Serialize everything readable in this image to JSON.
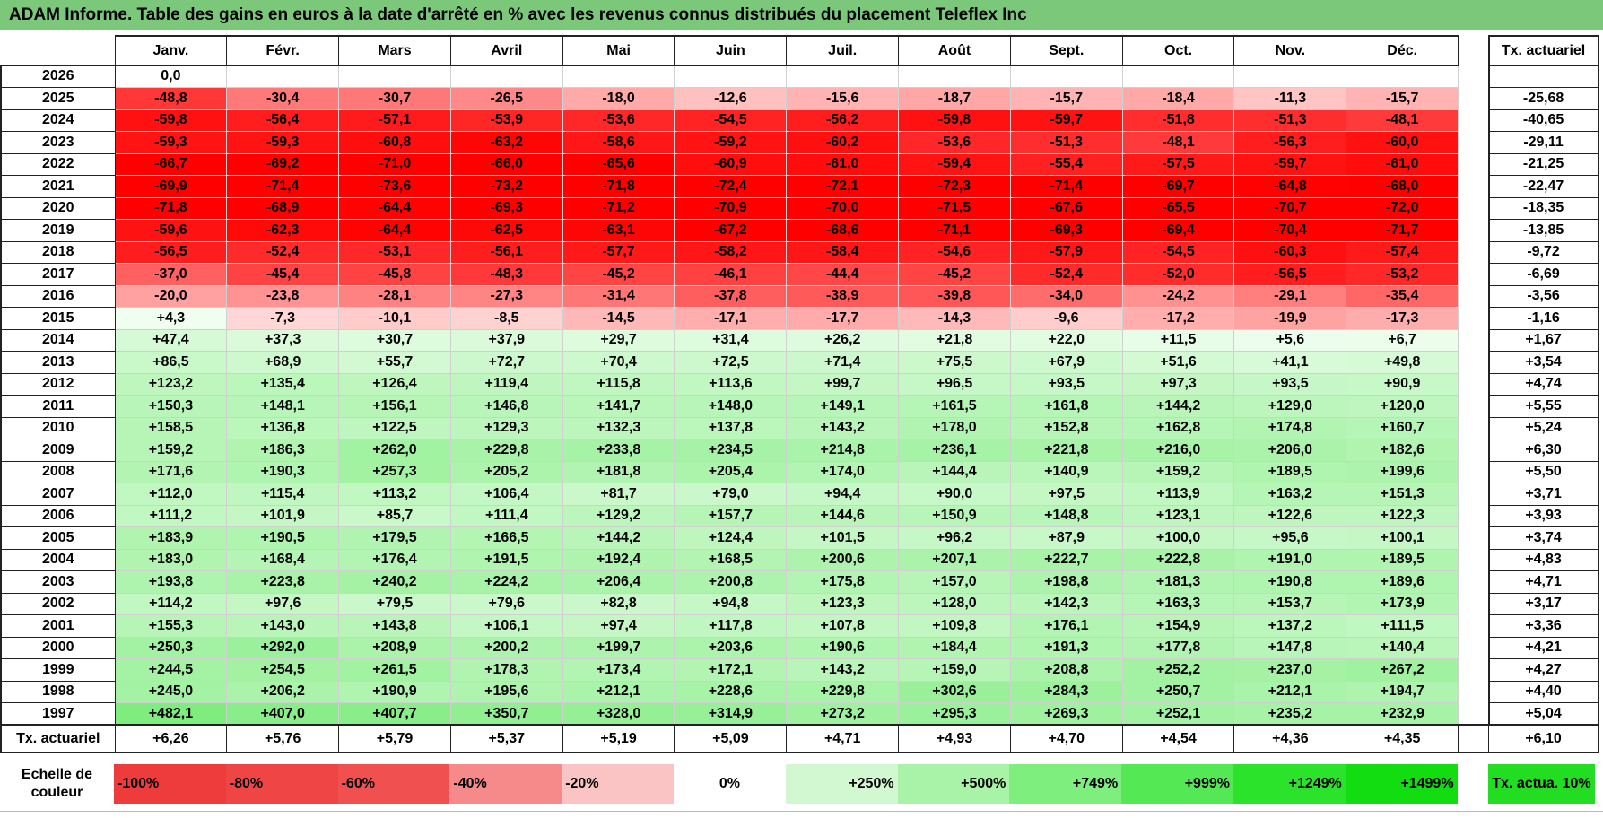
{
  "title": "ADAM Informe. Table des gains en euros à la date d'arrêté en % avec les revenus connus distribués du placement Teleflex Inc",
  "months": [
    "Janv.",
    "Févr.",
    "Mars",
    "Avril",
    "Mai",
    "Juin",
    "Juil.",
    "Août",
    "Sept.",
    "Oct.",
    "Nov.",
    "Déc."
  ],
  "annual_header": "Tx. actuariel",
  "rows": [
    {
      "year": "2026",
      "values": [
        "0,0"
      ],
      "annual": ""
    },
    {
      "year": "2025",
      "values": [
        "-48,8",
        "-30,4",
        "-30,7",
        "-26,5",
        "-18,0",
        "-12,6",
        "-15,6",
        "-18,7",
        "-15,7",
        "-18,4",
        "-11,3",
        "-15,7"
      ],
      "annual": "-25,68"
    },
    {
      "year": "2024",
      "values": [
        "-59,8",
        "-56,4",
        "-57,1",
        "-53,9",
        "-53,6",
        "-54,5",
        "-56,2",
        "-59,8",
        "-59,7",
        "-51,8",
        "-51,3",
        "-48,1"
      ],
      "annual": "-40,65"
    },
    {
      "year": "2023",
      "values": [
        "-59,3",
        "-59,3",
        "-60,8",
        "-63,2",
        "-58,6",
        "-59,2",
        "-60,2",
        "-53,6",
        "-51,3",
        "-48,1",
        "-56,3",
        "-60,0"
      ],
      "annual": "-29,11"
    },
    {
      "year": "2022",
      "values": [
        "-66,7",
        "-69,2",
        "-71,0",
        "-66,0",
        "-65,6",
        "-60,9",
        "-61,0",
        "-59,4",
        "-55,4",
        "-57,5",
        "-59,7",
        "-61,0"
      ],
      "annual": "-21,25"
    },
    {
      "year": "2021",
      "values": [
        "-69,9",
        "-71,4",
        "-73,6",
        "-73,2",
        "-71,8",
        "-72,4",
        "-72,1",
        "-72,3",
        "-71,4",
        "-69,7",
        "-64,8",
        "-68,0"
      ],
      "annual": "-22,47"
    },
    {
      "year": "2020",
      "values": [
        "-71,8",
        "-68,9",
        "-64,4",
        "-69,3",
        "-71,2",
        "-70,9",
        "-70,0",
        "-71,5",
        "-67,6",
        "-65,5",
        "-70,7",
        "-72,0"
      ],
      "annual": "-18,35"
    },
    {
      "year": "2019",
      "values": [
        "-59,6",
        "-62,3",
        "-64,4",
        "-62,5",
        "-63,1",
        "-67,2",
        "-68,6",
        "-71,1",
        "-69,3",
        "-69,4",
        "-70,4",
        "-71,7"
      ],
      "annual": "-13,85"
    },
    {
      "year": "2018",
      "values": [
        "-56,5",
        "-52,4",
        "-53,1",
        "-56,1",
        "-57,7",
        "-58,2",
        "-58,4",
        "-54,6",
        "-57,9",
        "-54,5",
        "-60,3",
        "-57,4"
      ],
      "annual": "-9,72"
    },
    {
      "year": "2017",
      "values": [
        "-37,0",
        "-45,4",
        "-45,8",
        "-48,3",
        "-45,2",
        "-46,1",
        "-44,4",
        "-45,2",
        "-52,4",
        "-52,0",
        "-56,5",
        "-53,2"
      ],
      "annual": "-6,69"
    },
    {
      "year": "2016",
      "values": [
        "-20,0",
        "-23,8",
        "-28,1",
        "-27,3",
        "-31,4",
        "-37,8",
        "-38,9",
        "-39,8",
        "-34,0",
        "-24,2",
        "-29,1",
        "-35,4"
      ],
      "annual": "-3,56"
    },
    {
      "year": "2015",
      "values": [
        "+4,3",
        "-7,3",
        "-10,1",
        "-8,5",
        "-14,5",
        "-17,1",
        "-17,7",
        "-14,3",
        "-9,6",
        "-17,2",
        "-19,9",
        "-17,3"
      ],
      "annual": "-1,16"
    },
    {
      "year": "2014",
      "values": [
        "+47,4",
        "+37,3",
        "+30,7",
        "+37,9",
        "+29,7",
        "+31,4",
        "+26,2",
        "+21,8",
        "+22,0",
        "+11,5",
        "+5,6",
        "+6,7"
      ],
      "annual": "+1,67"
    },
    {
      "year": "2013",
      "values": [
        "+86,5",
        "+68,9",
        "+55,7",
        "+72,7",
        "+70,4",
        "+72,5",
        "+71,4",
        "+75,5",
        "+67,9",
        "+51,6",
        "+41,1",
        "+49,8"
      ],
      "annual": "+3,54"
    },
    {
      "year": "2012",
      "values": [
        "+123,2",
        "+135,4",
        "+126,4",
        "+119,4",
        "+115,8",
        "+113,6",
        "+99,7",
        "+96,5",
        "+93,5",
        "+97,3",
        "+93,5",
        "+90,9"
      ],
      "annual": "+4,74"
    },
    {
      "year": "2011",
      "values": [
        "+150,3",
        "+148,1",
        "+156,1",
        "+146,8",
        "+141,7",
        "+148,0",
        "+149,1",
        "+161,5",
        "+161,8",
        "+144,2",
        "+129,0",
        "+120,0"
      ],
      "annual": "+5,55"
    },
    {
      "year": "2010",
      "values": [
        "+158,5",
        "+136,8",
        "+122,5",
        "+129,3",
        "+132,3",
        "+137,8",
        "+143,2",
        "+178,0",
        "+152,8",
        "+162,8",
        "+174,8",
        "+160,7"
      ],
      "annual": "+5,24"
    },
    {
      "year": "2009",
      "values": [
        "+159,2",
        "+186,3",
        "+262,0",
        "+229,8",
        "+233,8",
        "+234,5",
        "+214,8",
        "+236,1",
        "+221,8",
        "+216,0",
        "+206,0",
        "+182,6"
      ],
      "annual": "+6,30"
    },
    {
      "year": "2008",
      "values": [
        "+171,6",
        "+190,3",
        "+257,3",
        "+205,2",
        "+181,8",
        "+205,4",
        "+174,0",
        "+144,4",
        "+140,9",
        "+159,2",
        "+189,5",
        "+199,6"
      ],
      "annual": "+5,50"
    },
    {
      "year": "2007",
      "values": [
        "+112,0",
        "+115,4",
        "+113,2",
        "+106,4",
        "+81,7",
        "+79,0",
        "+94,4",
        "+90,0",
        "+97,5",
        "+113,9",
        "+163,2",
        "+151,3"
      ],
      "annual": "+3,71"
    },
    {
      "year": "2006",
      "values": [
        "+111,2",
        "+101,9",
        "+85,7",
        "+111,4",
        "+129,2",
        "+157,7",
        "+144,6",
        "+150,9",
        "+148,8",
        "+123,1",
        "+122,6",
        "+122,3"
      ],
      "annual": "+3,93"
    },
    {
      "year": "2005",
      "values": [
        "+183,9",
        "+190,5",
        "+179,5",
        "+166,5",
        "+144,2",
        "+124,4",
        "+101,5",
        "+96,2",
        "+87,9",
        "+100,0",
        "+95,6",
        "+100,1"
      ],
      "annual": "+3,74"
    },
    {
      "year": "2004",
      "values": [
        "+183,0",
        "+168,4",
        "+176,4",
        "+191,5",
        "+192,4",
        "+168,5",
        "+200,6",
        "+207,1",
        "+222,7",
        "+222,8",
        "+191,0",
        "+189,5"
      ],
      "annual": "+4,83"
    },
    {
      "year": "2003",
      "values": [
        "+193,8",
        "+223,8",
        "+240,2",
        "+224,2",
        "+206,4",
        "+200,8",
        "+175,8",
        "+157,0",
        "+198,8",
        "+181,3",
        "+190,8",
        "+189,6"
      ],
      "annual": "+4,71"
    },
    {
      "year": "2002",
      "values": [
        "+114,2",
        "+97,6",
        "+79,5",
        "+79,6",
        "+82,8",
        "+94,8",
        "+123,3",
        "+128,0",
        "+142,3",
        "+163,3",
        "+153,7",
        "+173,9"
      ],
      "annual": "+3,17"
    },
    {
      "year": "2001",
      "values": [
        "+155,3",
        "+143,0",
        "+143,8",
        "+106,1",
        "+97,4",
        "+117,8",
        "+107,8",
        "+109,8",
        "+176,1",
        "+154,9",
        "+137,2",
        "+111,5"
      ],
      "annual": "+3,36"
    },
    {
      "year": "2000",
      "values": [
        "+250,3",
        "+292,0",
        "+208,9",
        "+200,2",
        "+199,7",
        "+203,6",
        "+190,6",
        "+184,4",
        "+191,3",
        "+177,8",
        "+147,8",
        "+140,4"
      ],
      "annual": "+4,21"
    },
    {
      "year": "1999",
      "values": [
        "+244,5",
        "+254,5",
        "+261,5",
        "+178,3",
        "+173,4",
        "+172,1",
        "+143,2",
        "+159,0",
        "+208,8",
        "+252,2",
        "+237,0",
        "+267,2"
      ],
      "annual": "+4,27"
    },
    {
      "year": "1998",
      "values": [
        "+245,0",
        "+206,2",
        "+190,9",
        "+195,6",
        "+212,1",
        "+228,6",
        "+229,8",
        "+302,6",
        "+284,3",
        "+250,7",
        "+212,1",
        "+194,7"
      ],
      "annual": "+4,40"
    },
    {
      "year": "1997",
      "values": [
        "+482,1",
        "+407,0",
        "+407,7",
        "+350,7",
        "+328,0",
        "+314,9",
        "+273,2",
        "+295,3",
        "+269,3",
        "+252,1",
        "+235,2",
        "+232,9"
      ],
      "annual": "+5,04"
    }
  ],
  "footer": {
    "label": "Tx. actuariel",
    "values": [
      "+6,26",
      "+5,76",
      "+5,79",
      "+5,37",
      "+5,19",
      "+5,09",
      "+4,71",
      "+4,93",
      "+4,70",
      "+4,54",
      "+4,36",
      "+4,35"
    ],
    "annual": "+6,10"
  },
  "scale": {
    "label": "Echelle de couleur",
    "steps": [
      {
        "text": "-100%",
        "color": "#ee3b3b",
        "align": "left"
      },
      {
        "text": "-80%",
        "color": "#ef4545",
        "align": "left"
      },
      {
        "text": "-60%",
        "color": "#f05050",
        "align": "left"
      },
      {
        "text": "-40%",
        "color": "#f68a8a",
        "align": "left"
      },
      {
        "text": "-20%",
        "color": "#fbc4c4",
        "align": "left"
      },
      {
        "text": "0%",
        "color": "#ffffff",
        "align": "center"
      },
      {
        "text": "+250%",
        "color": "#d2f8d2",
        "align": "right"
      },
      {
        "text": "+500%",
        "color": "#a8f3a8",
        "align": "right"
      },
      {
        "text": "+749%",
        "color": "#7eee7e",
        "align": "right"
      },
      {
        "text": "+999%",
        "color": "#55e855",
        "align": "right"
      },
      {
        "text": "+1249%",
        "color": "#2be32b",
        "align": "right"
      },
      {
        "text": "+1499%",
        "color": "#11dd11",
        "align": "right"
      }
    ],
    "annual_label": "Tx. actua. 10%",
    "annual_color": "#22dd22"
  }
}
